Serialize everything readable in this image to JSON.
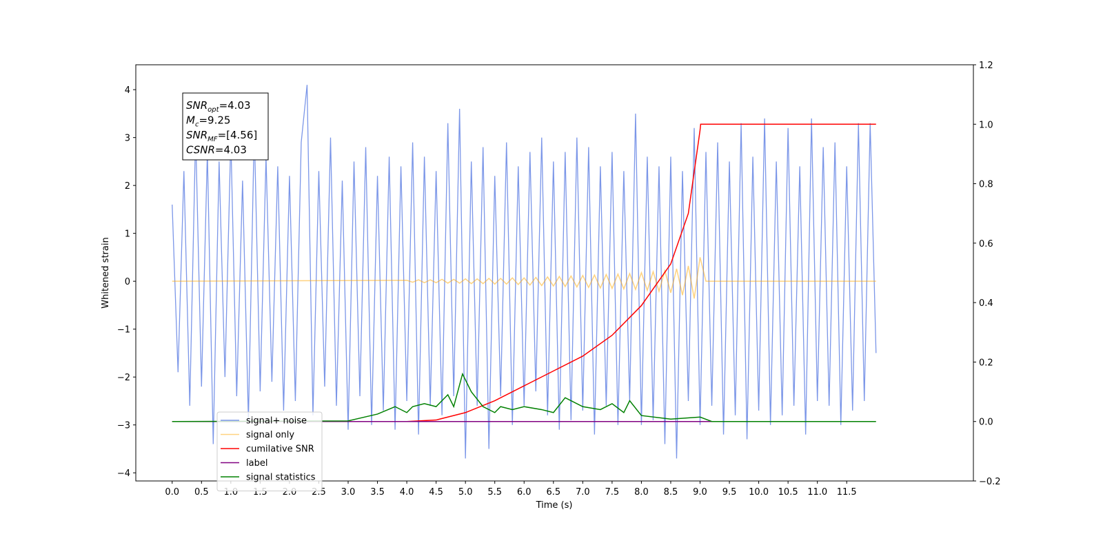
{
  "chart_data": {
    "type": "line",
    "xlabel": "Time (s)",
    "ylabel": "Whitened strain",
    "xlim": [
      -0.62,
      13.66
    ],
    "ylim": [
      -4.17,
      4.52
    ],
    "y2lim": [
      -0.2,
      1.2
    ],
    "xticks": [
      {
        "value": 0,
        "label": "0.0"
      },
      {
        "value": 0.5,
        "label": "0.5"
      },
      {
        "value": 1,
        "label": "1.0"
      },
      {
        "value": 1.5,
        "label": "1.5"
      },
      {
        "value": 2,
        "label": "2.0"
      },
      {
        "value": 2.5,
        "label": "2.5"
      },
      {
        "value": 3,
        "label": "3.0"
      },
      {
        "value": 3.5,
        "label": "3.5"
      },
      {
        "value": 4,
        "label": "4.0"
      },
      {
        "value": 4.5,
        "label": "4.5"
      },
      {
        "value": 5,
        "label": "5.0"
      },
      {
        "value": 5.5,
        "label": "5.5"
      },
      {
        "value": 6,
        "label": "6.0"
      },
      {
        "value": 6.5,
        "label": "6.5"
      },
      {
        "value": 7,
        "label": "7.0"
      },
      {
        "value": 7.5,
        "label": "7.5"
      },
      {
        "value": 8,
        "label": "8.0"
      },
      {
        "value": 8.5,
        "label": "8.5"
      },
      {
        "value": 9,
        "label": "9.0"
      },
      {
        "value": 9.5,
        "label": "9.5"
      },
      {
        "value": 10,
        "label": "10.0"
      },
      {
        "value": 10.5,
        "label": "10.5"
      },
      {
        "value": 11,
        "label": "11.0"
      },
      {
        "value": 11.5,
        "label": "11.5"
      }
    ],
    "yticks": [
      {
        "value": -4,
        "label": "−4"
      },
      {
        "value": -3,
        "label": "−3"
      },
      {
        "value": -2,
        "label": "−2"
      },
      {
        "value": -1,
        "label": "−1"
      },
      0,
      1,
      2,
      3,
      4
    ],
    "y2ticks": [
      {
        "value": -0.2,
        "label": "−0.2"
      },
      {
        "value": 0,
        "label": "0.0"
      },
      {
        "value": 0.2,
        "label": "0.2"
      },
      {
        "value": 0.4,
        "label": "0.4"
      },
      {
        "value": 0.6,
        "label": "0.6"
      },
      {
        "value": 0.8,
        "label": "0.8"
      },
      {
        "value": 1,
        "label": "1.0"
      },
      {
        "value": 1.2,
        "label": "1.2"
      }
    ],
    "legend": "lower left",
    "annotation": [
      {
        "name": "SNR",
        "sub": "opt",
        "rest": "=4.03"
      },
      {
        "name": "M",
        "sub": "c",
        "rest": "=9.25"
      },
      {
        "name": "SNR",
        "sub": "MF",
        "rest": "=[4.56]"
      },
      {
        "name": "CSNR",
        "sub": "",
        "rest": "=4.03"
      }
    ],
    "series": [
      {
        "name": "signal+ noise",
        "color": "#7b96e8",
        "axis": "y",
        "x": [
          0,
          0.1,
          0.2,
          0.3,
          0.4,
          0.5,
          0.6,
          0.7,
          0.8,
          0.9,
          1,
          1.1,
          1.2,
          1.3,
          1.4,
          1.5,
          1.6,
          1.7,
          1.8,
          1.9,
          2,
          2.1,
          2.2,
          2.3,
          2.4,
          2.5,
          2.6,
          2.7,
          2.8,
          2.9,
          3,
          3.1,
          3.2,
          3.3,
          3.4,
          3.5,
          3.6,
          3.7,
          3.8,
          3.9,
          4,
          4.1,
          4.2,
          4.3,
          4.4,
          4.5,
          4.6,
          4.7,
          4.8,
          4.9,
          5,
          5.1,
          5.2,
          5.3,
          5.4,
          5.5,
          5.6,
          5.7,
          5.8,
          5.9,
          6,
          6.1,
          6.2,
          6.3,
          6.4,
          6.5,
          6.6,
          6.7,
          6.8,
          6.9,
          7,
          7.1,
          7.2,
          7.3,
          7.4,
          7.5,
          7.6,
          7.7,
          7.8,
          7.9,
          8,
          8.1,
          8.2,
          8.3,
          8.4,
          8.5,
          8.6,
          8.7,
          8.8,
          8.9,
          9,
          9.1,
          9.2,
          9.3,
          9.4,
          9.5,
          9.6,
          9.7,
          9.8,
          9.9,
          10,
          10.1,
          10.2,
          10.3,
          10.4,
          10.5,
          10.6,
          10.7,
          10.8,
          10.9,
          11,
          11.1,
          11.2,
          11.3,
          11.4,
          11.5,
          11.6,
          11.7,
          11.8,
          11.9,
          12
        ],
        "values": [
          1.6,
          -1.9,
          2.3,
          -2.6,
          3.1,
          -2.2,
          2.7,
          -3.4,
          2.5,
          -2.0,
          3.0,
          -2.4,
          2.1,
          -2.9,
          3.2,
          -2.3,
          2.6,
          -2.1,
          2.4,
          -2.7,
          2.2,
          -2.5,
          2.9,
          4.1,
          -2.8,
          2.3,
          -2.2,
          3.0,
          -2.6,
          2.1,
          -3.1,
          2.5,
          -2.4,
          2.8,
          -3.0,
          2.2,
          -2.7,
          2.6,
          -3.1,
          2.4,
          -2.5,
          2.9,
          -3.2,
          2.6,
          -2.6,
          2.3,
          -2.8,
          3.3,
          -2.4,
          3.6,
          -3.7,
          2.5,
          -2.6,
          2.8,
          -3.5,
          2.2,
          -2.4,
          2.9,
          -3.0,
          2.4,
          -2.6,
          2.7,
          -2.3,
          3.0,
          -2.8,
          2.5,
          -3.1,
          2.7,
          -2.9,
          3.0,
          -2.7,
          2.8,
          -3.2,
          2.4,
          -2.6,
          2.7,
          -3.0,
          2.3,
          -2.5,
          3.5,
          -3.0,
          2.6,
          -2.9,
          2.4,
          -3.4,
          2.6,
          -3.7,
          2.3,
          -2.5,
          3.2,
          -3.0,
          2.7,
          -2.6,
          2.9,
          -3.2,
          2.5,
          -2.8,
          3.3,
          -3.3,
          2.6,
          -2.7,
          3.4,
          -3.0,
          2.5,
          -2.8,
          3.2,
          -2.6,
          2.4,
          -3.2,
          3.4,
          -2.5,
          2.8,
          -2.6,
          2.9,
          -3.0,
          2.4,
          -2.7,
          3.3,
          -2.5,
          3.3,
          -1.5
        ]
      },
      {
        "name": "signal only",
        "color": "#ffa500",
        "opacity": 0.5,
        "axis": "y",
        "x": [
          0,
          4,
          4.1,
          4.2,
          4.3,
          4.4,
          4.5,
          4.6,
          4.7,
          4.8,
          4.9,
          5,
          5.1,
          5.2,
          5.3,
          5.4,
          5.5,
          5.6,
          5.7,
          5.8,
          5.9,
          6,
          6.1,
          6.2,
          6.3,
          6.4,
          6.5,
          6.6,
          6.7,
          6.8,
          6.9,
          7,
          7.1,
          7.2,
          7.3,
          7.4,
          7.5,
          7.6,
          7.7,
          7.8,
          7.9,
          8,
          8.1,
          8.2,
          8.3,
          8.4,
          8.5,
          8.6,
          8.7,
          8.8,
          8.9,
          9,
          9.1,
          12
        ],
        "values": [
          0,
          0.02,
          -0.02,
          0.03,
          -0.03,
          0.03,
          -0.03,
          0.04,
          -0.04,
          0.04,
          -0.04,
          0.05,
          -0.05,
          0.05,
          -0.05,
          0.06,
          -0.06,
          0.06,
          -0.06,
          0.07,
          -0.07,
          0.07,
          -0.08,
          0.08,
          -0.09,
          0.09,
          -0.1,
          0.1,
          -0.11,
          0.11,
          -0.12,
          0.12,
          -0.13,
          0.13,
          -0.14,
          0.14,
          -0.15,
          0.15,
          -0.16,
          0.16,
          -0.17,
          0.18,
          -0.19,
          0.2,
          -0.21,
          0.22,
          -0.24,
          0.26,
          -0.29,
          0.32,
          -0.36,
          0.5,
          0,
          0
        ]
      },
      {
        "name": "cumilative SNR",
        "color": "#ff0000",
        "axis": "y2",
        "x": [
          0,
          4,
          4.5,
          5,
          5.5,
          6,
          6.5,
          7,
          7.5,
          8,
          8.5,
          8.8,
          9,
          9.01,
          12
        ],
        "values": [
          0,
          0,
          0.005,
          0.03,
          0.07,
          0.12,
          0.17,
          0.22,
          0.29,
          0.39,
          0.53,
          0.7,
          0.98,
          1.0,
          1.0
        ]
      },
      {
        "name": "label",
        "color": "#800080",
        "axis": "y2",
        "x": [
          0,
          11.95
        ],
        "values": [
          0,
          0
        ]
      },
      {
        "name": "signal statistics",
        "color": "#008000",
        "axis": "y2",
        "x": [
          0,
          3,
          3.5,
          3.8,
          4,
          4.1,
          4.3,
          4.5,
          4.7,
          4.8,
          4.95,
          5.1,
          5.3,
          5.5,
          5.6,
          5.8,
          6,
          6.3,
          6.5,
          6.7,
          7,
          7.3,
          7.5,
          7.7,
          7.8,
          8,
          8.5,
          9,
          9.2,
          12
        ],
        "values": [
          0,
          0.002,
          0.025,
          0.05,
          0.03,
          0.05,
          0.06,
          0.05,
          0.09,
          0.05,
          0.16,
          0.1,
          0.05,
          0.03,
          0.05,
          0.04,
          0.05,
          0.04,
          0.03,
          0.08,
          0.05,
          0.04,
          0.06,
          0.03,
          0.07,
          0.02,
          0.008,
          0.015,
          0,
          0
        ]
      }
    ]
  }
}
